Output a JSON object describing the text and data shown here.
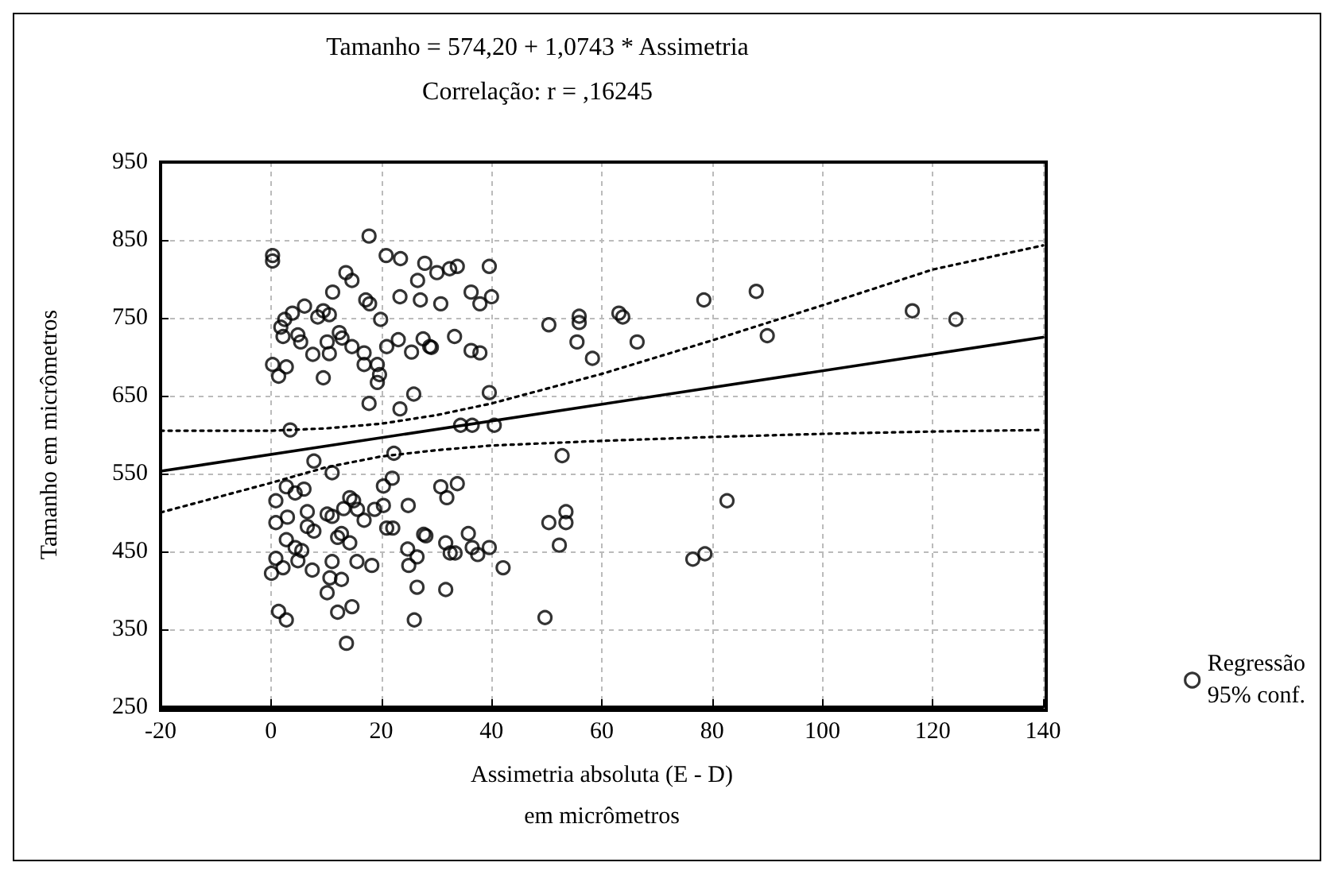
{
  "chart_data": {
    "type": "scatter",
    "title": "Tamanho = 574,20 + 1,0743 * Assimetria",
    "subtitle": "Correlação: r = ,16245",
    "xlabel": "Assimetria absoluta (E - D)\nem micrômetros",
    "ylabel": "Tamanho em micrômetros",
    "xlim": [
      -20,
      140
    ],
    "xticks": [
      -20,
      0,
      20,
      40,
      60,
      80,
      100,
      120,
      140
    ],
    "ylim": [
      250,
      950
    ],
    "yticks": [
      250,
      350,
      450,
      550,
      650,
      750,
      850,
      950
    ],
    "grid": true,
    "legend": "bottom right",
    "series": [
      {
        "name": "Regressão\n95% conf.",
        "marker": "circle",
        "color": "#000000",
        "x": [
          0.3,
          0.3,
          17.8,
          20.9,
          23.5,
          27.9,
          13.6,
          14.7,
          26.6,
          11.2,
          23.4,
          27.1,
          17.2,
          17.9,
          6.1,
          3.9,
          2.5,
          8.5,
          9.5,
          10.6,
          19.9,
          1.8,
          2.2,
          4.9,
          5.4,
          7.6,
          10.2,
          10.6,
          12.4,
          12.9,
          14.7,
          16.9,
          16.9,
          19.3,
          19.7,
          19.3,
          21.0,
          23.1,
          25.5,
          27.6,
          28.8,
          0.3,
          2.8,
          1.4,
          9.5,
          17.8,
          23.4,
          25.9,
          3.5,
          30.1,
          32.4,
          33.8,
          39.6,
          30.8,
          36.3,
          37.9,
          40.0,
          29.1,
          33.3,
          36.3,
          37.9,
          39.6,
          50.4,
          55.9,
          55.9,
          63.1,
          63.8,
          55.5,
          58.3,
          66.4,
          78.5,
          34.4,
          36.5,
          40.5,
          88.0,
          90.0,
          116.3,
          124.2,
          82.7,
          7.8,
          11.1,
          22.3,
          0.9,
          2.8,
          4.4,
          6.0,
          0.9,
          3.0,
          6.6,
          6.6,
          7.8,
          2.8,
          4.4,
          5.6,
          0.9,
          0.1,
          2.2,
          4.9,
          7.5,
          10.2,
          11.1,
          13.2,
          14.3,
          15.0,
          15.7,
          16.9,
          18.8,
          20.4,
          20.4,
          22.0,
          24.9,
          12.1,
          12.8,
          14.3,
          11.1,
          10.7,
          12.8,
          10.2,
          15.6,
          18.3,
          12.1,
          14.7,
          1.4,
          2.8,
          13.7,
          21.0,
          22.1,
          24.8,
          26.5,
          25.0,
          27.7,
          26.5,
          26.0,
          30.8,
          31.9,
          33.8,
          28.1,
          31.7,
          32.5,
          33.4,
          35.8,
          36.5,
          37.5,
          39.6,
          42.1,
          31.7,
          52.8,
          50.4,
          53.5,
          53.5,
          52.3,
          49.7,
          76.5,
          78.7
        ],
        "values": [
          830,
          823,
          855,
          830,
          826,
          820,
          808,
          798,
          798,
          783,
          777,
          773,
          773,
          768,
          765,
          756,
          748,
          751,
          759,
          754,
          748,
          738,
          726,
          728,
          719,
          703,
          719,
          704,
          731,
          724,
          713,
          705,
          690,
          690,
          677,
          667,
          713,
          722,
          706,
          723,
          713,
          690,
          687,
          675,
          673,
          640,
          633,
          652,
          606,
          808,
          813,
          816,
          816,
          768,
          783,
          768,
          777,
          712,
          726,
          708,
          705,
          654,
          741,
          752,
          744,
          756,
          751,
          719,
          698,
          719,
          773,
          612,
          612,
          612,
          784,
          727,
          759,
          748,
          515,
          566,
          551,
          576,
          515,
          533,
          525,
          530,
          487,
          494,
          501,
          482,
          476,
          465,
          455,
          451,
          441,
          422,
          429,
          438,
          426,
          498,
          495,
          505,
          519,
          515,
          504,
          490,
          504,
          509,
          534,
          544,
          509,
          468,
          473,
          461,
          437,
          416,
          414,
          397,
          437,
          432,
          372,
          379,
          373,
          362,
          332,
          480,
          480,
          453,
          443,
          432,
          472,
          404,
          362,
          533,
          519,
          537,
          470,
          461,
          448,
          448,
          473,
          455,
          446,
          455,
          429,
          401,
          573,
          487,
          501,
          487,
          458,
          365,
          440,
          447
        ]
      },
      {
        "type": "line",
        "marker": "none",
        "color": "#000000",
        "line_style": "solid",
        "x": [
          -20,
          140
        ],
        "values": [
          553,
          725
        ]
      },
      {
        "type": "line",
        "marker": "none",
        "color": "#000000",
        "line_style": "dotted",
        "x": [
          -20,
          0,
          10,
          20,
          30,
          40,
          60,
          80,
          100,
          120,
          140
        ],
        "values": [
          605,
          605,
          608,
          614,
          625,
          640,
          678,
          721,
          766,
          812,
          843
        ]
      },
      {
        "type": "line",
        "marker": "none",
        "color": "#000000",
        "line_style": "dotted",
        "x": [
          -20,
          0,
          10,
          20,
          30,
          40,
          60,
          80,
          100,
          120,
          140
        ],
        "values": [
          500,
          538,
          558,
          572,
          580,
          586,
          592,
          597,
          601,
          604,
          606
        ]
      }
    ]
  }
}
